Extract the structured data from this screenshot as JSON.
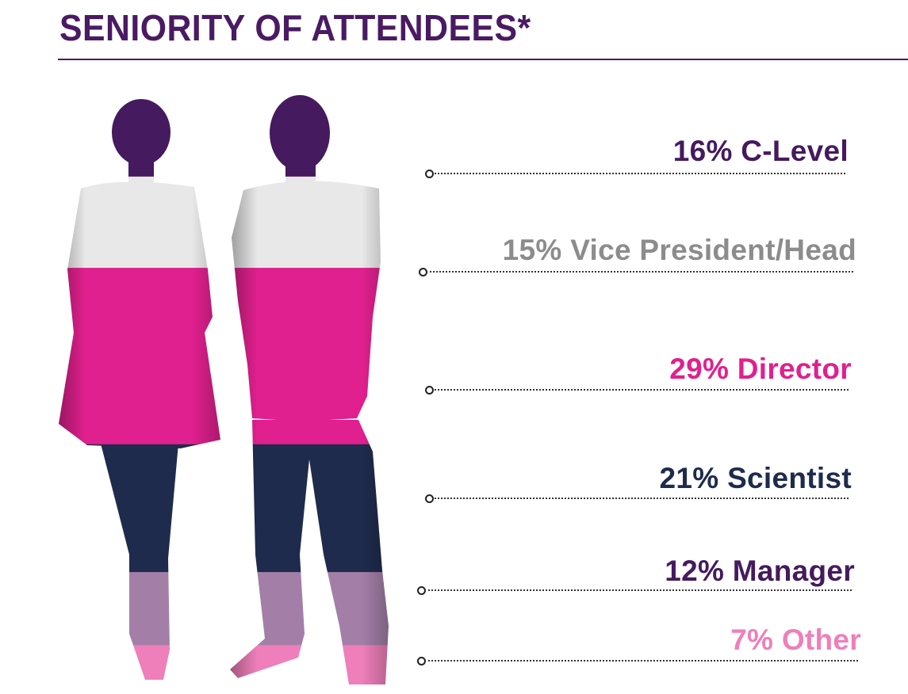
{
  "title": "SENIORITY OF ATTENDEES*",
  "chart_data": {
    "type": "bar",
    "title": "SENIORITY OF ATTENDEES*",
    "categories": [
      "C-Level",
      "Vice President/Head",
      "Director",
      "Scientist",
      "Manager",
      "Other"
    ],
    "values": [
      16,
      15,
      29,
      21,
      12,
      7
    ],
    "unit": "%",
    "labels": [
      "16% C-Level",
      "15% Vice President/Head",
      "29% Director",
      "21% Scientist",
      "12% Manager",
      "7% Other"
    ],
    "colors": [
      "#451a5e",
      "#e8e8e8",
      "#e0208e",
      "#1f2b4c",
      "#a37fa8",
      "#ee7fba"
    ],
    "label_colors": [
      "#451a5e",
      "#8c8c8c",
      "#e0208e",
      "#1f2b4c",
      "#451a5e",
      "#ee7fba"
    ]
  }
}
